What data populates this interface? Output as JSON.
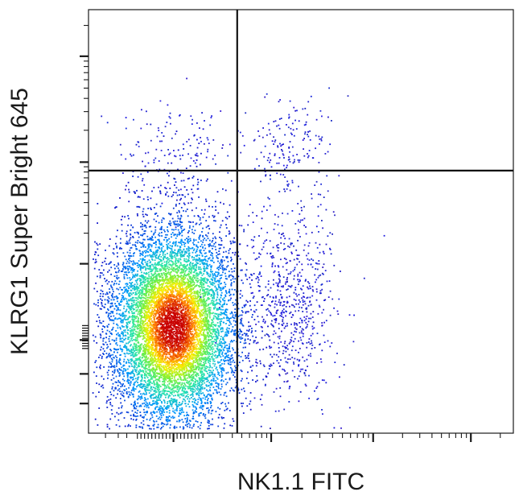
{
  "chart_data": {
    "type": "scatter",
    "subtype": "flow-cytometry-pseudocolor-density",
    "title": "",
    "xlabel": "NK1.1 FITC",
    "ylabel": "KLRG1 Super Bright 645",
    "x_scale": "biexponential",
    "y_scale": "biexponential",
    "tick_labels_visible": false,
    "grid": false,
    "legend": "none",
    "gates": {
      "type": "quadrant",
      "x_cut": 0.35,
      "y_cut": 0.62
    },
    "populations": [
      {
        "name": "",
        "quadrant": "lower-left",
        "center": [
          0.2,
          0.25
        ],
        "spread": [
          0.075,
          0.12
        ],
        "relative_density": "very high",
        "color_range": [
          "#0000d0",
          "#00c0ff",
          "#40ff80",
          "#ffff00",
          "#ff4000",
          "#c00000"
        ]
      },
      {
        "name": "",
        "quadrant": "lower-right",
        "center": [
          0.48,
          0.3
        ],
        "spread": [
          0.055,
          0.12
        ],
        "relative_density": "low",
        "color_range": [
          "#0000d0"
        ]
      },
      {
        "name": "",
        "quadrant": "upper-right",
        "center": [
          0.47,
          0.68
        ],
        "spread": [
          0.05,
          0.06
        ],
        "relative_density": "very low",
        "color_range": [
          "#0000d0"
        ]
      },
      {
        "name": "",
        "quadrant": "upper-left",
        "center": [
          0.2,
          0.66
        ],
        "spread": [
          0.07,
          0.07
        ],
        "relative_density": "very low",
        "color_range": [
          "#0000d0"
        ]
      }
    ],
    "axis_ranges": {
      "x": [
        0,
        1
      ],
      "y": [
        0,
        1
      ]
    }
  },
  "colors": {
    "frame": "#1a1a1a",
    "gate_line": "#111111",
    "low_density": "#1010c8",
    "high_density": "#c80000"
  }
}
